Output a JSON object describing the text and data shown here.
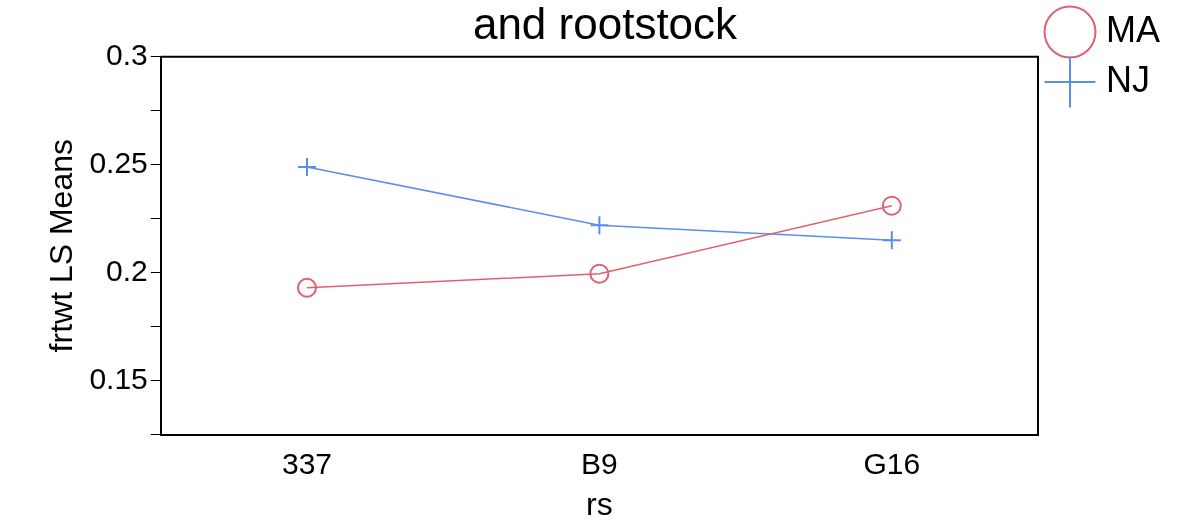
{
  "chart_data": {
    "type": "line",
    "title": "and rootstock",
    "xlabel": "rs",
    "ylabel": "frtwt LS Means",
    "categories": [
      "337",
      "B9",
      "G16"
    ],
    "series": [
      {
        "name": "MA",
        "color": "#e06070",
        "values": [
          0.193,
          0.1995,
          0.231
        ],
        "marker": "circle"
      },
      {
        "name": "NJ",
        "color": "#5b8def",
        "values": [
          0.249,
          0.222,
          0.215
        ],
        "marker": "cross"
      }
    ],
    "ylim": [
      0.125,
      0.3
    ],
    "yticks": [
      {
        "value": 0.125,
        "label": null
      },
      0.15,
      {
        "value": 0.175,
        "label": null
      },
      0.2,
      {
        "value": 0.225,
        "label": null
      },
      0.25,
      {
        "value": 0.275,
        "label": null
      },
      0.3
    ],
    "grid": false,
    "legend": "top right",
    "line_style": "solid"
  }
}
